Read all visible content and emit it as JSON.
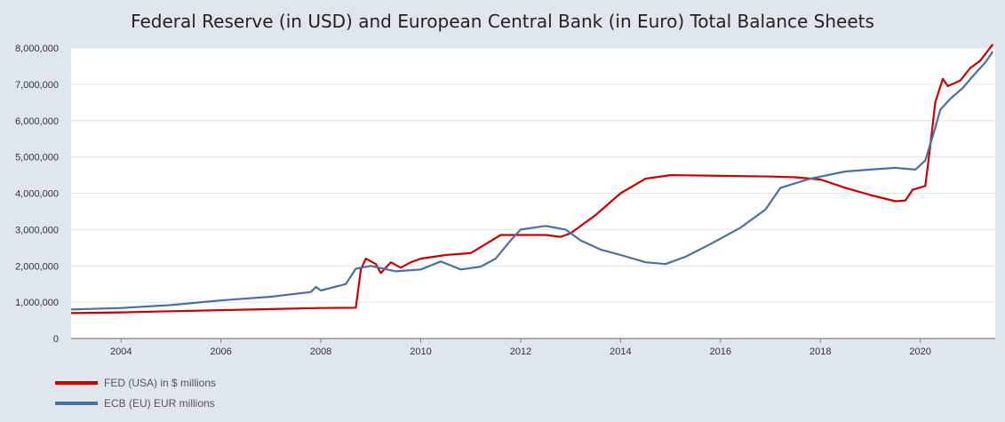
{
  "chart_data": {
    "type": "line",
    "title": "Federal Reserve (in USD) and European Central Bank (in Euro) Total Balance Sheets",
    "xlabel": "",
    "ylabel": "",
    "xlim": [
      2003.0,
      2021.5
    ],
    "ylim": [
      0,
      8000000
    ],
    "x_ticks": [
      "2004",
      "2006",
      "2008",
      "2010",
      "2012",
      "2014",
      "2016",
      "2018",
      "2020"
    ],
    "y_ticks": [
      "0",
      "1,000,000",
      "2,000,000",
      "3,000,000",
      "4,000,000",
      "5,000,000",
      "6,000,000",
      "7,000,000",
      "8,000,000"
    ],
    "grid": true,
    "legend_position": "bottom-left",
    "series": [
      {
        "name": "FED (USA) in $ millions",
        "color": "#cc0000",
        "points": [
          [
            2003.0,
            700000
          ],
          [
            2004.0,
            720000
          ],
          [
            2005.0,
            750000
          ],
          [
            2006.0,
            780000
          ],
          [
            2007.0,
            810000
          ],
          [
            2008.0,
            840000
          ],
          [
            2008.7,
            850000
          ],
          [
            2008.8,
            1900000
          ],
          [
            2008.9,
            2200000
          ],
          [
            2009.1,
            2050000
          ],
          [
            2009.2,
            1800000
          ],
          [
            2009.4,
            2100000
          ],
          [
            2009.6,
            1950000
          ],
          [
            2009.8,
            2100000
          ],
          [
            2010.0,
            2200000
          ],
          [
            2010.5,
            2300000
          ],
          [
            2011.0,
            2350000
          ],
          [
            2011.3,
            2600000
          ],
          [
            2011.6,
            2850000
          ],
          [
            2012.0,
            2850000
          ],
          [
            2012.5,
            2850000
          ],
          [
            2012.8,
            2800000
          ],
          [
            2013.0,
            2900000
          ],
          [
            2013.5,
            3400000
          ],
          [
            2014.0,
            4000000
          ],
          [
            2014.5,
            4400000
          ],
          [
            2015.0,
            4500000
          ],
          [
            2016.0,
            4480000
          ],
          [
            2017.0,
            4460000
          ],
          [
            2017.5,
            4440000
          ],
          [
            2018.0,
            4380000
          ],
          [
            2018.5,
            4150000
          ],
          [
            2019.0,
            3950000
          ],
          [
            2019.5,
            3780000
          ],
          [
            2019.7,
            3800000
          ],
          [
            2019.85,
            4100000
          ],
          [
            2020.1,
            4200000
          ],
          [
            2020.2,
            5300000
          ],
          [
            2020.3,
            6500000
          ],
          [
            2020.45,
            7150000
          ],
          [
            2020.55,
            6950000
          ],
          [
            2020.8,
            7100000
          ],
          [
            2021.0,
            7450000
          ],
          [
            2021.2,
            7650000
          ],
          [
            2021.45,
            8100000
          ]
        ]
      },
      {
        "name": "ECB (EU) EUR millions",
        "color": "#4a6fa5",
        "points": [
          [
            2003.0,
            800000
          ],
          [
            2004.0,
            840000
          ],
          [
            2005.0,
            920000
          ],
          [
            2006.0,
            1050000
          ],
          [
            2007.0,
            1150000
          ],
          [
            2007.8,
            1280000
          ],
          [
            2007.9,
            1420000
          ],
          [
            2008.0,
            1320000
          ],
          [
            2008.5,
            1500000
          ],
          [
            2008.7,
            1920000
          ],
          [
            2009.0,
            2000000
          ],
          [
            2009.5,
            1850000
          ],
          [
            2010.0,
            1900000
          ],
          [
            2010.4,
            2120000
          ],
          [
            2010.8,
            1900000
          ],
          [
            2011.2,
            1980000
          ],
          [
            2011.5,
            2200000
          ],
          [
            2011.8,
            2700000
          ],
          [
            2012.0,
            3000000
          ],
          [
            2012.5,
            3100000
          ],
          [
            2012.9,
            3000000
          ],
          [
            2013.2,
            2700000
          ],
          [
            2013.6,
            2450000
          ],
          [
            2014.0,
            2300000
          ],
          [
            2014.5,
            2100000
          ],
          [
            2014.9,
            2050000
          ],
          [
            2015.3,
            2250000
          ],
          [
            2015.8,
            2600000
          ],
          [
            2016.4,
            3050000
          ],
          [
            2016.9,
            3550000
          ],
          [
            2017.2,
            4150000
          ],
          [
            2017.8,
            4400000
          ],
          [
            2018.5,
            4600000
          ],
          [
            2019.0,
            4650000
          ],
          [
            2019.5,
            4700000
          ],
          [
            2019.9,
            4650000
          ],
          [
            2020.1,
            4900000
          ],
          [
            2020.3,
            5800000
          ],
          [
            2020.4,
            6300000
          ],
          [
            2020.6,
            6600000
          ],
          [
            2020.85,
            6900000
          ],
          [
            2021.1,
            7300000
          ],
          [
            2021.3,
            7600000
          ],
          [
            2021.45,
            7900000
          ]
        ]
      }
    ]
  }
}
